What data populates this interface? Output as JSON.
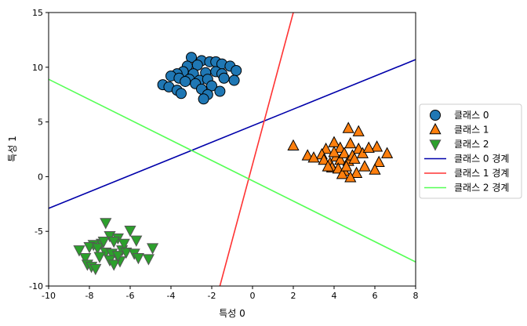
{
  "chart_data": {
    "type": "scatter",
    "xlabel": "특성 0",
    "ylabel": "특성 1",
    "xlim": [
      -10,
      8
    ],
    "ylim": [
      -10,
      15
    ],
    "xticks": [
      "-10",
      "-8",
      "-6",
      "-4",
      "-2",
      "0",
      "2",
      "4",
      "6",
      "8"
    ],
    "yticks": [
      "-10",
      "-5",
      "0",
      "5",
      "10",
      "15"
    ],
    "grid": false,
    "legend_position": "outside-right",
    "series": [
      {
        "name": "클래스 0",
        "marker": "circle",
        "color": "#1f77b4",
        "points": [
          [
            -3.0,
            10.9
          ],
          [
            -2.5,
            10.6
          ],
          [
            -2.1,
            10.5
          ],
          [
            -1.8,
            10.5
          ],
          [
            -1.5,
            10.3
          ],
          [
            -2.7,
            10.2
          ],
          [
            -3.2,
            10.1
          ],
          [
            -1.1,
            10.1
          ],
          [
            -3.4,
            9.6
          ],
          [
            -2.9,
            9.4
          ],
          [
            -2.3,
            9.5
          ],
          [
            -1.8,
            9.6
          ],
          [
            -1.5,
            9.4
          ],
          [
            -0.8,
            9.7
          ],
          [
            -3.7,
            9.4
          ],
          [
            -4.0,
            9.2
          ],
          [
            -3.6,
            9.0
          ],
          [
            -3.1,
            8.9
          ],
          [
            -2.6,
            8.8
          ],
          [
            -2.2,
            8.9
          ],
          [
            -1.4,
            9.0
          ],
          [
            -0.9,
            8.8
          ],
          [
            -3.3,
            8.7
          ],
          [
            -2.8,
            8.5
          ],
          [
            -4.4,
            8.4
          ],
          [
            -4.1,
            8.2
          ],
          [
            -2.0,
            8.3
          ],
          [
            -2.5,
            8.0
          ],
          [
            -3.7,
            7.9
          ],
          [
            -1.6,
            7.8
          ],
          [
            -3.5,
            7.6
          ],
          [
            -2.2,
            7.5
          ],
          [
            -2.4,
            7.1
          ]
        ]
      },
      {
        "name": "클래스 1",
        "marker": "triangle-up",
        "color": "#ff7f0e",
        "points": [
          [
            2.0,
            2.8
          ],
          [
            3.6,
            2.5
          ],
          [
            4.0,
            3.1
          ],
          [
            4.3,
            2.6
          ],
          [
            4.8,
            3.0
          ],
          [
            5.2,
            2.5
          ],
          [
            6.1,
            2.7
          ],
          [
            6.6,
            2.1
          ],
          [
            4.7,
            4.4
          ],
          [
            5.2,
            4.1
          ],
          [
            5.4,
            2.1
          ],
          [
            5.7,
            2.6
          ],
          [
            3.4,
            2.0
          ],
          [
            2.7,
            1.9
          ],
          [
            3.0,
            1.7
          ],
          [
            3.5,
            1.5
          ],
          [
            3.8,
            1.2
          ],
          [
            4.1,
            1.8
          ],
          [
            4.3,
            1.5
          ],
          [
            4.5,
            2.1
          ],
          [
            4.7,
            1.4
          ],
          [
            4.9,
            1.9
          ],
          [
            5.0,
            1.6
          ],
          [
            3.9,
            0.8
          ],
          [
            4.2,
            0.7
          ],
          [
            4.5,
            0.5
          ],
          [
            5.1,
            0.3
          ],
          [
            5.5,
            0.9
          ],
          [
            6.2,
            1.3
          ],
          [
            6.0,
            0.6
          ],
          [
            4.4,
            0.2
          ],
          [
            4.8,
            -0.1
          ],
          [
            4.6,
            0.9
          ],
          [
            3.7,
            0.9
          ],
          [
            4.0,
            2.2
          ]
        ]
      },
      {
        "name": "클래스 2",
        "marker": "triangle-down",
        "color": "#2ca02c",
        "points": [
          [
            -7.2,
            -4.2
          ],
          [
            -6.0,
            -4.9
          ],
          [
            -7.0,
            -5.4
          ],
          [
            -6.6,
            -5.6
          ],
          [
            -6.8,
            -5.9
          ],
          [
            -5.7,
            -5.8
          ],
          [
            -4.9,
            -6.5
          ],
          [
            -7.4,
            -6.1
          ],
          [
            -7.8,
            -6.2
          ],
          [
            -8.0,
            -6.4
          ],
          [
            -8.5,
            -6.7
          ],
          [
            -7.6,
            -6.5
          ],
          [
            -7.2,
            -6.9
          ],
          [
            -6.9,
            -7.0
          ],
          [
            -6.4,
            -6.7
          ],
          [
            -6.2,
            -6.9
          ],
          [
            -5.8,
            -7.0
          ],
          [
            -8.2,
            -7.4
          ],
          [
            -7.5,
            -7.3
          ],
          [
            -7.0,
            -7.6
          ],
          [
            -6.5,
            -7.7
          ],
          [
            -5.6,
            -7.4
          ],
          [
            -5.1,
            -7.5
          ],
          [
            -8.1,
            -8.0
          ],
          [
            -7.9,
            -8.2
          ],
          [
            -6.8,
            -8.0
          ],
          [
            -6.6,
            -7.2
          ],
          [
            -7.3,
            -5.9
          ],
          [
            -6.3,
            -6.1
          ],
          [
            -7.7,
            -8.4
          ]
        ]
      }
    ],
    "lines": [
      {
        "name": "클래스 0 경계",
        "color": "#0000aa",
        "points": [
          [
            -10,
            -2.9
          ],
          [
            8,
            10.7
          ]
        ]
      },
      {
        "name": "클래스 1 경계",
        "color": "#ff3333",
        "points": [
          [
            -1.6,
            -10
          ],
          [
            2.0,
            15
          ]
        ]
      },
      {
        "name": "클래스 2 경계",
        "color": "#55ff55",
        "points": [
          [
            -10,
            8.9
          ],
          [
            8,
            -7.8
          ]
        ]
      }
    ]
  }
}
